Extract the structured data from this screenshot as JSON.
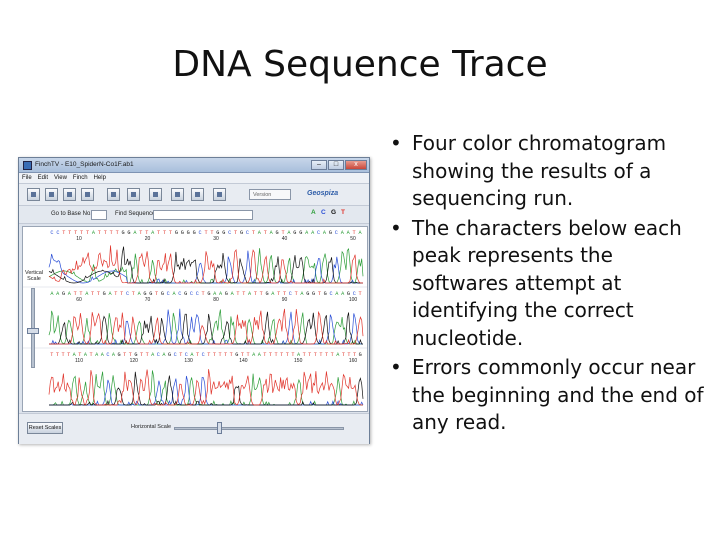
{
  "slide": {
    "title": "DNA Sequence Trace",
    "bullets": [
      "Four color chromatogram showing the results of a sequencing run.",
      "The characters below each peak represents the softwares attempt at identifying the correct nucleotide.",
      "Errors commonly occur near the beginning and the end of any read."
    ]
  },
  "window": {
    "title": "FinchTV - E10_SpiderN-Co1F.ab1",
    "menu": [
      "File",
      "Edit",
      "View",
      "Finch",
      "Help"
    ],
    "toolbar": {
      "version_placeholder": "Version",
      "brand": "Geospiza"
    },
    "goto_label": "Go to Base No.",
    "find_label": "Find Sequence",
    "base_toggles": [
      "A",
      "C",
      "G",
      "T"
    ],
    "vertical_scale_label": "Vertical Scale",
    "reset_label": "Reset Scales",
    "horizontal_scale_label": "Horizontal Scale"
  },
  "traces": {
    "rows": [
      {
        "sequence": "CCTTTTTATTTTGGATTATTTGGGGCTTGGCTGCTATAGTAGGAACAGCAATA",
        "ticks": [
          "10",
          "20",
          "30",
          "40",
          "50"
        ]
      },
      {
        "sequence": "AAGATTATTGATTCTAGGTGCACGCCTGAAGATTATTGATTCTAGGTGCAAGCT",
        "ticks": [
          "60",
          "70",
          "80",
          "90",
          "100"
        ]
      },
      {
        "sequence": "TTTTATATAACAGTTGTTACAGCTCATCTTTTTGTTAATTTTTTATTTTTTATTTG",
        "ticks": [
          "110",
          "120",
          "130",
          "140",
          "150",
          "160"
        ]
      }
    ]
  },
  "colors": {
    "A": "#2e9e3a",
    "C": "#2b4fd6",
    "G": "#111111",
    "T": "#e0342b"
  }
}
